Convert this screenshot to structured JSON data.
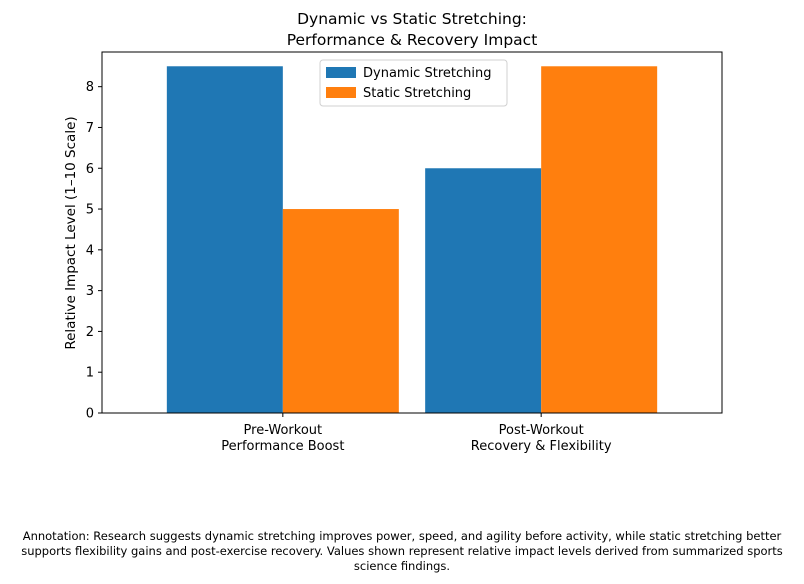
{
  "chart_data": {
    "type": "bar",
    "title_lines": [
      "Dynamic vs Static Stretching:",
      "Performance & Recovery Impact"
    ],
    "ylabel": "Relative Impact Level (1–10 Scale)",
    "xlabel": "",
    "categories": [
      [
        "Pre-Workout",
        "Performance Boost"
      ],
      [
        "Post-Workout",
        "Recovery & Flexibility"
      ]
    ],
    "series": [
      {
        "name": "Dynamic Stretching",
        "color": "#1f77b4",
        "values": [
          8.5,
          6.0
        ]
      },
      {
        "name": "Static Stretching",
        "color": "#ff7f0e",
        "values": [
          5.0,
          8.5
        ]
      }
    ],
    "ylim": [
      0,
      8.85
    ],
    "yticks": [
      0,
      1,
      2,
      3,
      4,
      5,
      6,
      7,
      8
    ],
    "grid": false,
    "legend_position": "top-center"
  },
  "annotation": "Annotation: Research suggests dynamic stretching improves power, speed, and agility before activity, while static stretching better supports flexibility gains and post-exercise recovery. Values shown represent relative impact levels derived from summarized sports science findings."
}
